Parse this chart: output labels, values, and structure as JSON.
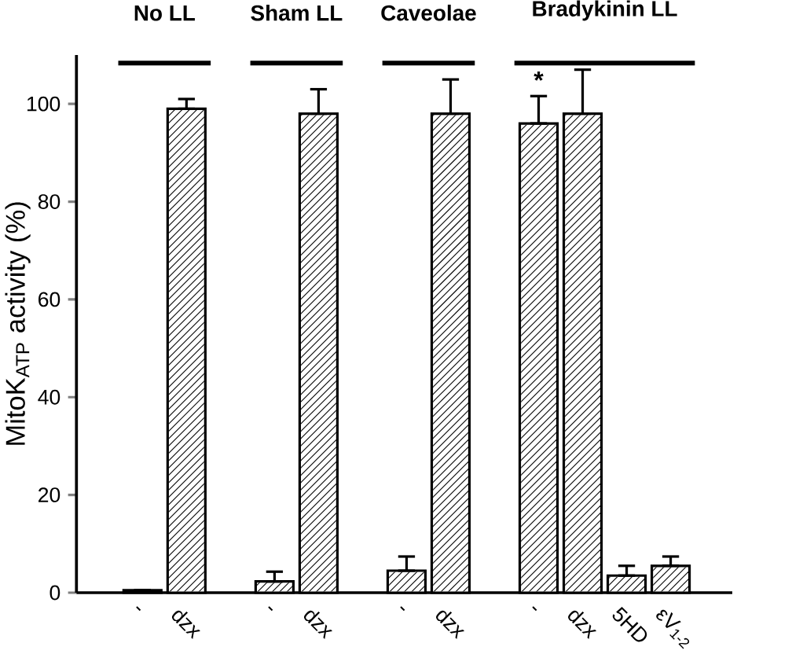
{
  "chart_data": {
    "type": "bar",
    "ylabel": "MitoK$_{ATP}$ activity (%)",
    "categories": [
      "-",
      "dzx",
      null,
      "-",
      "dzx",
      null,
      "-",
      "dzx",
      null,
      "-",
      "dzx",
      "5HD",
      "εV$_{1-2}$"
    ],
    "values": [
      0.5,
      99,
      null,
      2.3,
      98,
      null,
      4.5,
      98,
      null,
      96,
      98,
      3.5,
      5.5
    ],
    "errors": [
      null,
      [
        99,
        101
      ],
      null,
      [
        2.3,
        4.3
      ],
      [
        98,
        103
      ],
      null,
      [
        4.5,
        7.4
      ],
      [
        98,
        105
      ],
      null,
      [
        96,
        101.6
      ],
      [
        98,
        107
      ],
      [
        3.5,
        5.5
      ],
      [
        5.5,
        7.4
      ]
    ],
    "value_labels": [
      null,
      null,
      null,
      null,
      null,
      null,
      null,
      null,
      null,
      "*",
      null,
      null,
      null
    ],
    "color": "#000000",
    "ylim": [
      0,
      110
    ],
    "yticks": [
      0,
      20,
      40,
      60,
      80,
      100
    ],
    "annotations": [
      "No LL",
      "Sham LL",
      "Caveolae",
      "Bradykinin LL"
    ]
  }
}
